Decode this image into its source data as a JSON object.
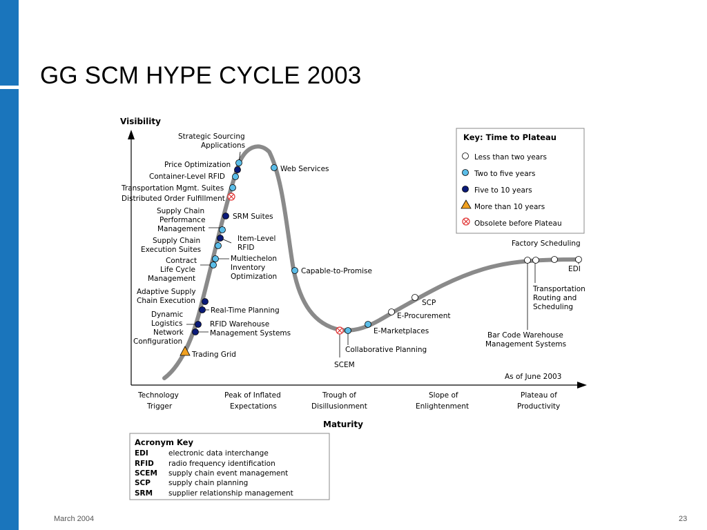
{
  "slide": {
    "title": "GG SCM HYPE CYCLE 2003",
    "footer_date": "March 2004",
    "page_number": "23"
  },
  "diagram": {
    "y_axis_label": "Visibility",
    "x_axis_label": "Maturity",
    "as_of": "As of June 2003",
    "phases": [
      {
        "line1": "Technology",
        "line2": "Trigger"
      },
      {
        "line1": "Peak of Inflated",
        "line2": "Expectations"
      },
      {
        "line1": "Trough of",
        "line2": "Disillusionment"
      },
      {
        "line1": "Slope of",
        "line2": "Enlightenment"
      },
      {
        "line1": "Plateau of",
        "line2": "Productivity"
      }
    ],
    "key": {
      "title": "Key: Time to Plateau",
      "items": [
        {
          "label": "Less than two years",
          "marker": "white-circle"
        },
        {
          "label": "Two to five years",
          "marker": "light-blue-circle"
        },
        {
          "label": "Five to 10 years",
          "marker": "dark-blue-circle"
        },
        {
          "label": "More than 10 years",
          "marker": "orange-triangle"
        },
        {
          "label": "Obsolete before Plateau",
          "marker": "red-x-circle"
        }
      ]
    },
    "labels": {
      "strategic_sourcing_1": "Strategic Sourcing",
      "strategic_sourcing_2": "Applications",
      "price_optimization": "Price Optimization",
      "container_rfid": "Container-Level RFID",
      "transportation_mgmt": "Transportation Mgmt. Suites",
      "distributed_order": "Distributed Order Fulfillment",
      "scp_perf_1": "Supply Chain",
      "scp_perf_2": "Performance",
      "scp_perf_3": "Management",
      "exec_1": "Supply Chain",
      "exec_2": "Execution Suites",
      "contract_1": "Contract",
      "contract_2": "Life Cycle",
      "contract_3": "Management",
      "adaptive_1": "Adaptive Supply",
      "adaptive_2": "Chain Execution",
      "dynamic_1": "Dynamic",
      "dynamic_2": "Logistics",
      "dynamic_3": "Network",
      "dynamic_4": "Configuration",
      "trading_grid": "Trading Grid",
      "srm_suites": "SRM Suites",
      "item_rfid_1": "Item-Level",
      "item_rfid_2": "RFID",
      "multi_1": "Multiechelon",
      "multi_2": "Inventory",
      "multi_3": "Optimization",
      "realtime": "Real-Time Planning",
      "rfid_wms_1": "RFID Warehouse",
      "rfid_wms_2": "Management Systems",
      "web_services": "Web Services",
      "capable": "Capable-to-Promise",
      "scem": "SCEM",
      "collab": "Collaborative Planning",
      "emarket": "E-Marketplaces",
      "eproc": "E-Procurement",
      "scp": "SCP",
      "factory": "Factory Scheduling",
      "edi": "EDI",
      "trans_1": "Transportation",
      "trans_2": "Routing and",
      "trans_3": "Scheduling",
      "barcode_1": "Bar Code Warehouse",
      "barcode_2": "Management Systems"
    },
    "acronym_key": {
      "title": "Acronym Key",
      "rows": [
        {
          "abbr": "EDI",
          "text": "electronic data interchange"
        },
        {
          "abbr": "RFID",
          "text": "radio frequency identification"
        },
        {
          "abbr": "SCEM",
          "text": "supply chain event management"
        },
        {
          "abbr": "SCP",
          "text": "supply chain planning"
        },
        {
          "abbr": "SRM",
          "text": "supplier relationship management"
        }
      ]
    },
    "colors": {
      "curve": "#8a8a8a",
      "light_blue": "#5bbde8",
      "dark_blue": "#0a1a78",
      "orange": "#f0a020",
      "red": "#e03030",
      "brand_blue": "#1a75bc"
    }
  }
}
